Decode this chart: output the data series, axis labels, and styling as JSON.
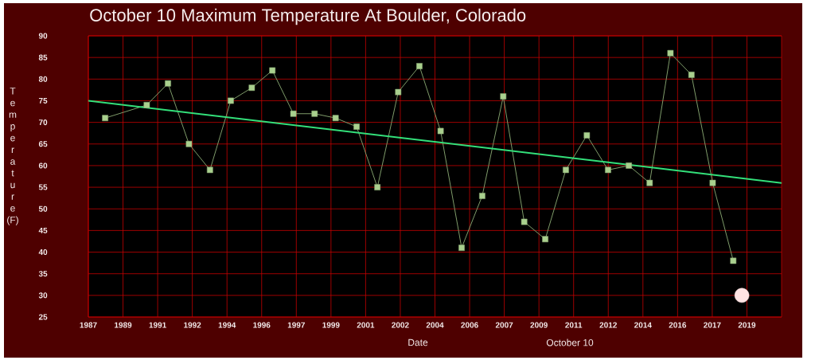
{
  "chart_data": {
    "type": "line",
    "title": "October 10 Maximum Temperature At Boulder, Colorado",
    "xlabel": "Date",
    "ylabel": "Temperature (F)",
    "annotations": [
      "October 10"
    ],
    "xlim": [
      1987.48,
      2020.48
    ],
    "ylim": [
      25,
      90
    ],
    "xticks": [
      {
        "value": 1987.48,
        "label": "1987"
      },
      {
        "value": 1989.13,
        "label": "1989"
      },
      {
        "value": 1990.78,
        "label": "1991"
      },
      {
        "value": 1992.43,
        "label": "1992"
      },
      {
        "value": 1994.08,
        "label": "1994"
      },
      {
        "value": 1995.73,
        "label": "1996"
      },
      {
        "value": 1997.38,
        "label": "1997"
      },
      {
        "value": 1999.03,
        "label": "1999"
      },
      {
        "value": 2000.68,
        "label": "2001"
      },
      {
        "value": 2002.33,
        "label": "2002"
      },
      {
        "value": 2003.98,
        "label": "2004"
      },
      {
        "value": 2005.63,
        "label": "2006"
      },
      {
        "value": 2007.28,
        "label": "2007"
      },
      {
        "value": 2008.93,
        "label": "2009"
      },
      {
        "value": 2010.58,
        "label": "2011"
      },
      {
        "value": 2012.23,
        "label": "2012"
      },
      {
        "value": 2013.88,
        "label": "2014"
      },
      {
        "value": 2015.53,
        "label": "2016"
      },
      {
        "value": 2017.18,
        "label": "2017"
      },
      {
        "value": 2018.83,
        "label": "2019"
      }
    ],
    "yticks": [
      25,
      30,
      35,
      40,
      45,
      50,
      55,
      60,
      65,
      70,
      75,
      80,
      85,
      90
    ],
    "grid": true,
    "series": [
      {
        "color": "#a9d08e",
        "marker": "square",
        "x": [
          1988.28,
          1990.26,
          1991.27,
          1992.27,
          1993.27,
          1994.26,
          1995.26,
          1996.24,
          1997.24,
          1998.25,
          1999.25,
          2000.25,
          2001.24,
          2002.23,
          2003.24,
          2004.25,
          2005.25,
          2006.23,
          2007.23,
          2008.23,
          2009.23,
          2010.21,
          2011.21,
          2012.22,
          2013.21,
          2014.2,
          2015.19,
          2016.19,
          2017.2,
          2018.18
        ],
        "values": [
          71,
          74,
          79,
          65,
          59,
          75,
          78,
          82,
          72,
          72,
          71,
          69,
          55,
          77,
          83,
          68,
          41,
          53,
          76,
          47,
          43,
          59,
          67,
          59,
          60,
          56,
          86,
          81,
          56,
          38
        ]
      },
      {
        "color": "#33e07a",
        "marker": "none",
        "x": [
          1987.48,
          2020.48
        ],
        "values": [
          75,
          56
        ]
      },
      {
        "type": "scatter",
        "color": "#ffe4e4",
        "marker": "circle",
        "x": [
          2018.59
        ],
        "values": [
          30
        ]
      }
    ]
  }
}
